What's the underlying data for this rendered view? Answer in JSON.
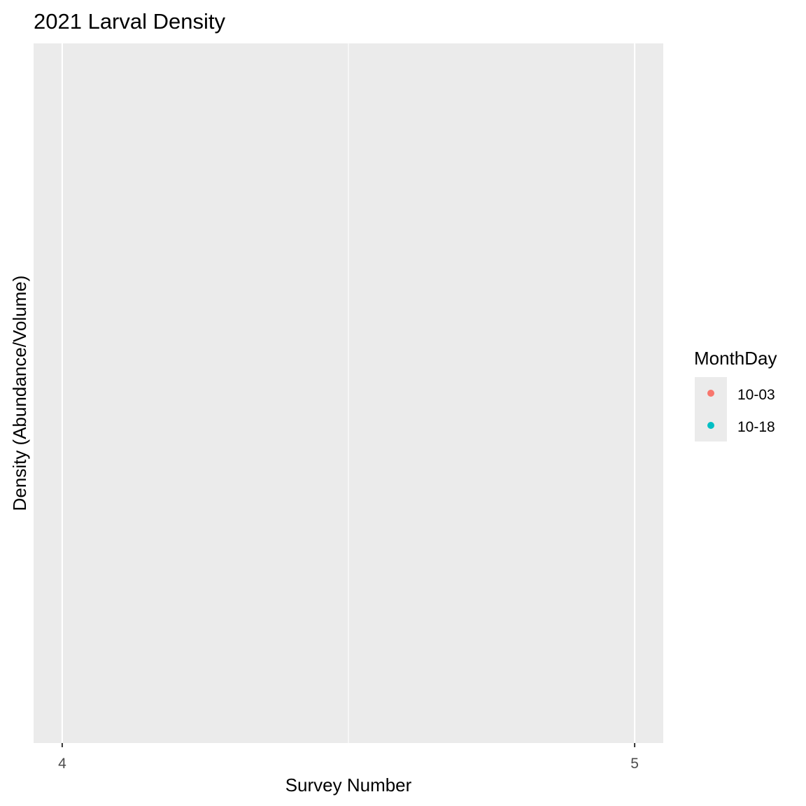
{
  "chart_data": {
    "type": "scatter",
    "title": "2021 Larval Density",
    "xlabel": "Survey Number",
    "ylabel": "Density (Abundance/Volume)",
    "xlim": [
      3.95,
      5.05
    ],
    "x_ticks": [
      4,
      5
    ],
    "x_tick_labels": [
      "4",
      "5"
    ],
    "x_minor_ticks": [
      4.5
    ],
    "grid": true,
    "legend": {
      "title": "MonthDay",
      "position": "right",
      "entries": [
        {
          "label": "10-03",
          "color": "#F8766D"
        },
        {
          "label": "10-18",
          "color": "#00BFC4"
        }
      ]
    },
    "series": [
      {
        "name": "10-03",
        "color": "#F8766D",
        "points": []
      },
      {
        "name": "10-18",
        "color": "#00BFC4",
        "points": []
      }
    ]
  }
}
